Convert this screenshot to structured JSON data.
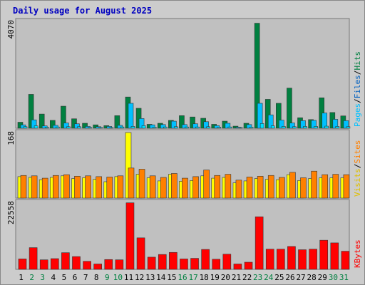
{
  "chart_data": {
    "type": "bar",
    "title": "Daily usage for August 2025",
    "categories": [
      "1",
      "2",
      "3",
      "4",
      "5",
      "6",
      "7",
      "8",
      "9",
      "10",
      "11",
      "12",
      "13",
      "14",
      "15",
      "16",
      "17",
      "18",
      "19",
      "20",
      "21",
      "22",
      "23",
      "24",
      "25",
      "26",
      "27",
      "28",
      "29",
      "30",
      "31"
    ],
    "weekend_days": [
      "2",
      "3",
      "9",
      "10",
      "16",
      "17",
      "23",
      "24",
      "30",
      "31"
    ],
    "panels": [
      {
        "name": "pages-files-hits",
        "ymax": 4070,
        "ymax_label": "4070",
        "right_label": [
          "Pages",
          "Files",
          "Hits"
        ],
        "series": [
          {
            "name": "Hits",
            "color": "#008040",
            "values": [
              230,
              1290,
              540,
              300,
              840,
              360,
              190,
              130,
              100,
              480,
              1190,
              760,
              150,
              190,
              300,
              480,
              430,
              380,
              150,
              270,
              80,
              190,
              4000,
              1100,
              950,
              1530,
              400,
              330,
              1160,
              600,
              470
            ]
          },
          {
            "name": "Files",
            "color": "#00c0ff",
            "values": [
              130,
              320,
              90,
              110,
              200,
              170,
              70,
              60,
              70,
              110,
              950,
              370,
              130,
              140,
              270,
              140,
              170,
              250,
              100,
              190,
              40,
              140,
              950,
              510,
              310,
              200,
              290,
              300,
              580,
              340,
              290
            ]
          },
          {
            "name": "Pages",
            "color": "#00e0ff",
            "values": [
              60,
              90,
              40,
              50,
              60,
              60,
              30,
              30,
              20,
              50,
              70,
              100,
              40,
              50,
              60,
              50,
              50,
              60,
              40,
              50,
              20,
              40,
              180,
              90,
              70,
              60,
              70,
              70,
              80,
              70,
              60
            ]
          }
        ]
      },
      {
        "name": "visits-sites",
        "ymax": 168,
        "ymax_label": "168",
        "right_label": [
          "Visits",
          "Sites"
        ],
        "series": [
          {
            "name": "Visits",
            "color": "#ffff00",
            "values": [
              55,
              53,
              47,
              53,
              57,
              50,
              52,
              48,
              42,
              55,
              168,
              61,
              52,
              44,
              61,
              43,
              45,
              57,
              51,
              53,
              39,
              44,
              50,
              48,
              47,
              60,
              45,
              50,
              52,
              52,
              52
            ]
          },
          {
            "name": "Sites",
            "color": "#ff8000",
            "values": [
              58,
              57,
              51,
              58,
              60,
              56,
              57,
              55,
              54,
              57,
              77,
              74,
              57,
              53,
              63,
              51,
              55,
              72,
              58,
              61,
              46,
              54,
              56,
              58,
              53,
              66,
              52,
              69,
              60,
              61,
              60
            ]
          }
        ]
      },
      {
        "name": "kbytes",
        "ymax": 22558,
        "ymax_label": "22558",
        "right_label": [
          "KBytes"
        ],
        "series": [
          {
            "name": "KBytes",
            "color": "#ff0000",
            "values": [
              3500,
              7300,
              3200,
              3600,
              5600,
              4300,
              2700,
              1800,
              3300,
              3200,
              22400,
              10600,
              4100,
              5000,
              5700,
              3500,
              3700,
              6700,
              3400,
              5100,
              1800,
              2400,
              17700,
              6800,
              6800,
              7700,
              6600,
              6800,
              9800,
              8900,
              6100
            ]
          }
        ]
      }
    ]
  }
}
